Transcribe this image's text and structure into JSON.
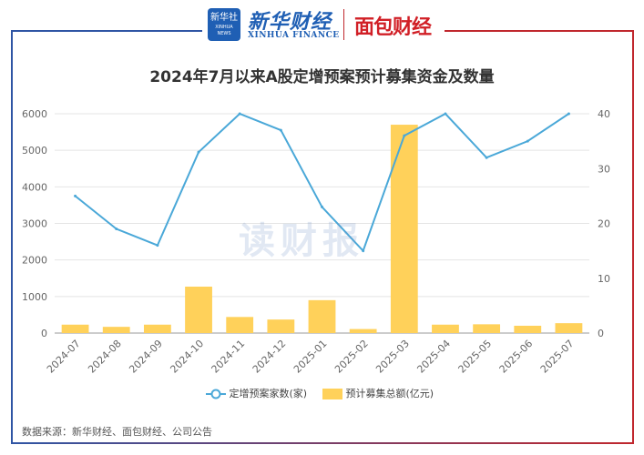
{
  "header": {
    "xinhua_badge": "新华社",
    "xinhua_badge_sub": "XINHUA NEWS",
    "xinhua_logo": "新华财经",
    "xinhua_logo_en": "XINHUA FINANCE",
    "mianbao_logo": "面包财经"
  },
  "watermark": "读财报",
  "source": "数据来源：新华财经、面包财经、公司公告",
  "colors": {
    "line": "#4aa8d8",
    "bar": "#ffd15a",
    "frame_left": "#2f55a4",
    "frame_right": "#c0272d"
  },
  "chart_data": {
    "type": "bar",
    "title": "2024年7月以来A股定增预案预计募集资金及数量",
    "categories": [
      "2024-07",
      "2024-08",
      "2024-09",
      "2024-10",
      "2024-11",
      "2024-12",
      "2025-01",
      "2025-02",
      "2025-03",
      "2025-04",
      "2025-05",
      "2025-06",
      "2025-07"
    ],
    "series": [
      {
        "name": "预计募集总额(亿元)",
        "type": "bar",
        "axis": "left",
        "values": [
          230,
          170,
          230,
          1270,
          440,
          370,
          900,
          110,
          5700,
          230,
          240,
          200,
          270
        ]
      },
      {
        "name": "定增预案家数(家)",
        "type": "line",
        "axis": "right",
        "values": [
          25,
          19,
          16,
          33,
          40,
          37,
          23,
          15,
          36,
          40,
          32,
          35,
          40
        ]
      }
    ],
    "y_left": {
      "ylim": [
        0,
        6000
      ],
      "ticks": [
        "0",
        "1000",
        "2000",
        "3000",
        "4000",
        "5000",
        "6000"
      ]
    },
    "y_right": {
      "ylim": [
        0,
        40
      ],
      "ticks": [
        "0",
        "10",
        "20",
        "30",
        "40"
      ]
    },
    "grid": true,
    "legend": "bottom"
  }
}
